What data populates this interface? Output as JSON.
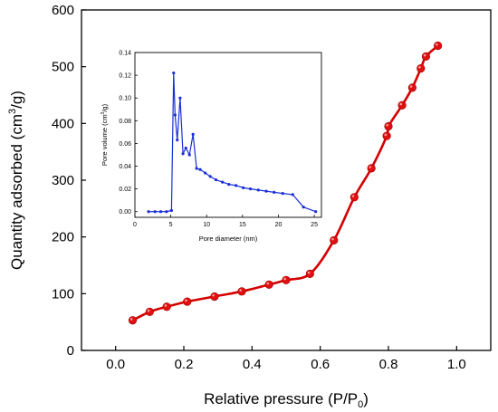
{
  "chart_data": [
    {
      "type": "line",
      "role": "main",
      "xlabel_main": "Relative pressure (P/P",
      "xlabel_sub": "0",
      "xlabel_end": ")",
      "ylabel_main": "Quantity adsorbed (cm",
      "ylabel_sup": "3",
      "ylabel_end": "/g)",
      "xlim": [
        -0.1,
        1.1
      ],
      "ylim": [
        0,
        600
      ],
      "xticks": [
        "0.0",
        "0.2",
        "0.4",
        "0.6",
        "0.8",
        "1.0"
      ],
      "xtick_values": [
        0.0,
        0.2,
        0.4,
        0.6,
        0.8,
        1.0
      ],
      "yticks": [
        "0",
        "100",
        "200",
        "300",
        "400",
        "500",
        "600"
      ],
      "ytick_values": [
        0,
        100,
        200,
        300,
        400,
        500,
        600
      ],
      "grid": false,
      "line_color": "#d40000",
      "marker_color": "#e01010",
      "series": [
        {
          "x": [
            0.05,
            0.1,
            0.15,
            0.21,
            0.29,
            0.37,
            0.45,
            0.5,
            0.57,
            0.64,
            0.7,
            0.75,
            0.795,
            0.8,
            0.84,
            0.87,
            0.895,
            0.91,
            0.945
          ],
          "y": [
            53,
            68,
            77,
            86,
            95,
            104,
            116,
            124,
            135,
            194,
            270,
            321,
            378,
            395,
            432,
            463,
            497,
            518,
            537
          ]
        }
      ]
    },
    {
      "type": "line",
      "role": "inset",
      "xlabel": "Pore diameter (nm)",
      "ylabel_main": "Pore volume (cm",
      "ylabel_sup": "3",
      "ylabel_end": "/g)",
      "xlim": [
        0,
        26
      ],
      "ylim": [
        -0.005,
        0.14
      ],
      "xticks": [
        "0",
        "5",
        "10",
        "15",
        "20",
        "25"
      ],
      "xtick_values": [
        0,
        5,
        10,
        15,
        20,
        25
      ],
      "yticks": [
        "0.00",
        "0.02",
        "0.04",
        "0.06",
        "0.08",
        "0.10",
        "0.12",
        "0.14"
      ],
      "ytick_values": [
        0.0,
        0.02,
        0.04,
        0.06,
        0.08,
        0.1,
        0.12,
        0.14
      ],
      "grid": false,
      "line_color": "#1a2fd8",
      "marker_color": "#1a2fd8",
      "series": [
        {
          "x": [
            1.9,
            2.8,
            3.6,
            4.4,
            5.1,
            5.4,
            5.6,
            5.9,
            6.3,
            6.7,
            7.1,
            7.6,
            8.1,
            8.6,
            9.1,
            9.8,
            10.5,
            11.3,
            12.2,
            13.1,
            14.1,
            15.1,
            16.1,
            17.2,
            18.3,
            19.4,
            20.6,
            22.0,
            23.5,
            25.2
          ],
          "y": [
            0.0,
            0.0,
            0.0,
            0.0,
            0.001,
            0.122,
            0.085,
            0.063,
            0.1,
            0.051,
            0.056,
            0.05,
            0.068,
            0.038,
            0.037,
            0.034,
            0.031,
            0.028,
            0.026,
            0.024,
            0.023,
            0.021,
            0.02,
            0.019,
            0.018,
            0.017,
            0.016,
            0.015,
            0.004,
            0.0
          ]
        }
      ]
    }
  ]
}
